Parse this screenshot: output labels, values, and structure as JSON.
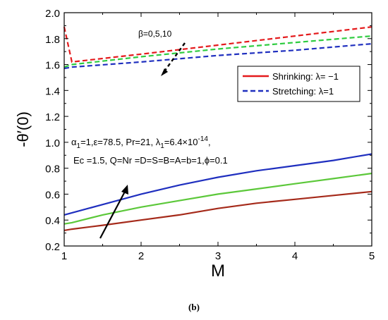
{
  "chart_data": {
    "type": "line",
    "xlabel": "M",
    "ylabel": "-θ′(0)",
    "xlim": [
      1,
      5
    ],
    "ylim": [
      0.2,
      2.0
    ],
    "xticks": [
      "1",
      "2",
      "3",
      "4",
      "5"
    ],
    "yticks": [
      "0.2",
      "0.4",
      "0.6",
      "0.8",
      "1.0",
      "1.2",
      "1.4",
      "1.6",
      "1.8",
      "2.0"
    ],
    "legend_position": "top-right",
    "legend": [
      {
        "label": "Shrinking: λ= −1",
        "color": "#e41a1c",
        "style": "solid"
      },
      {
        "label": "Stretching: λ=1",
        "color": "#1f2fbf",
        "style": "dashed"
      }
    ],
    "annotations": {
      "beta_label": "β=0,5,10",
      "params_line1_prefix": "α",
      "params_line1_sub1": "1",
      "params_line1_mid": "=1,ε=78.5, Pr=21, λ",
      "params_line1_sub2": "1",
      "params_line1_val": "=6.4×10",
      "params_line1_sup": "-14",
      "params_line1_end": ",",
      "params_line2": "Ec =1.5, Q=Nr =D=S=B=A=b=1,ϕ=0.1"
    },
    "series": [
      {
        "style": "dashed",
        "color": "#e41a1c",
        "x": [
          1,
          1.1,
          2,
          3,
          4,
          5
        ],
        "y": [
          1.89,
          1.62,
          1.68,
          1.75,
          1.82,
          1.89
        ]
      },
      {
        "style": "dashed",
        "color": "#2ecc40",
        "x": [
          1,
          1.1,
          2,
          3,
          4,
          5
        ],
        "y": [
          1.58,
          1.6,
          1.66,
          1.72,
          1.77,
          1.82
        ]
      },
      {
        "style": "dashed",
        "color": "#1f2fbf",
        "x": [
          1,
          1.1,
          2,
          3,
          4,
          5
        ],
        "y": [
          1.57,
          1.58,
          1.62,
          1.67,
          1.71,
          1.76
        ]
      },
      {
        "style": "solid",
        "color": "#1f2fbf",
        "x": [
          1,
          1.5,
          2,
          2.5,
          3,
          3.5,
          4,
          4.5,
          5
        ],
        "y": [
          0.44,
          0.52,
          0.6,
          0.67,
          0.73,
          0.78,
          0.82,
          0.86,
          0.91
        ]
      },
      {
        "style": "solid",
        "color": "#5cc83a",
        "x": [
          1,
          1.1,
          1.5,
          2,
          2.5,
          3,
          3.5,
          4,
          4.5,
          5
        ],
        "y": [
          0.37,
          0.38,
          0.44,
          0.5,
          0.55,
          0.6,
          0.64,
          0.68,
          0.72,
          0.76
        ]
      },
      {
        "style": "solid",
        "color": "#a52a1a",
        "x": [
          1,
          1.1,
          1.5,
          2,
          2.5,
          3,
          3.5,
          4,
          4.5,
          5
        ],
        "y": [
          0.32,
          0.33,
          0.36,
          0.4,
          0.44,
          0.49,
          0.53,
          0.56,
          0.59,
          0.62
        ]
      }
    ]
  },
  "caption": "(b)"
}
